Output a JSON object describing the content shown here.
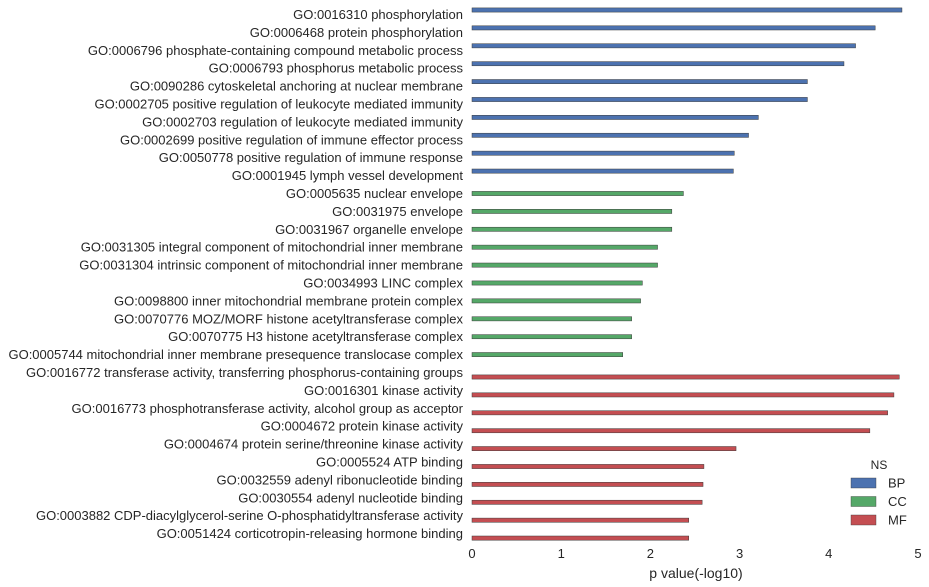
{
  "chart_data": {
    "type": "bar",
    "orientation": "horizontal",
    "xlabel": "p value(-log10)",
    "xlim": [
      0,
      5
    ],
    "xticks": [
      "0",
      "1",
      "2",
      "3",
      "4",
      "5"
    ],
    "grid": false,
    "legend": {
      "title": "NS",
      "placement": "bottom-right",
      "entries": [
        {
          "name": "BP",
          "color": "#4c72b0"
        },
        {
          "name": "CC",
          "color": "#55a868"
        },
        {
          "name": "MF",
          "color": "#c44e52"
        }
      ]
    },
    "series": [
      {
        "name": "BP",
        "color": "#4c72b0",
        "categories": [
          "GO:0016310 phosphorylation",
          "GO:0006468 protein phosphorylation",
          "GO:0006796 phosphate-containing compound metabolic process",
          "GO:0006793 phosphorus metabolic process",
          "GO:0090286 cytoskeletal anchoring at nuclear membrane",
          "GO:0002705 positive regulation of leukocyte mediated immunity",
          "GO:0002703 regulation of leukocyte mediated immunity",
          "GO:0002699 positive regulation of immune effector process",
          "GO:0050778 positive regulation of immune response",
          "GO:0001945 lymph vessel development"
        ],
        "values": [
          4.82,
          4.52,
          4.3,
          4.17,
          3.76,
          3.76,
          3.21,
          3.1,
          2.94,
          2.93
        ]
      },
      {
        "name": "CC",
        "color": "#55a868",
        "categories": [
          "GO:0005635 nuclear envelope",
          "GO:0031975 envelope",
          "GO:0031967 organelle envelope",
          "GO:0031305 integral component of mitochondrial inner membrane",
          "GO:0031304 intrinsic component of mitochondrial inner membrane",
          "GO:0034993 LINC complex",
          "GO:0098800 inner mitochondrial membrane protein complex",
          "GO:0070776 MOZ/MORF histone acetyltransferase complex",
          "GO:0070775 H3 histone acetyltransferase complex",
          "GO:0005744 mitochondrial inner membrane presequence translocase complex"
        ],
        "values": [
          2.37,
          2.24,
          2.24,
          2.08,
          2.08,
          1.91,
          1.89,
          1.79,
          1.79,
          1.69
        ]
      },
      {
        "name": "MF",
        "color": "#c44e52",
        "categories": [
          "GO:0016772 transferase activity, transferring phosphorus-containing groups",
          "GO:0016301 kinase activity",
          "GO:0016773 phosphotransferase activity, alcohol group as acceptor",
          "GO:0004672 protein kinase activity",
          "GO:0004674 protein serine/threonine kinase activity",
          "GO:0005524 ATP binding",
          "GO:0032559 adenyl ribonucleotide binding",
          "GO:0030554 adenyl nucleotide binding",
          "GO:0003882 CDP-diacylglycerol-serine O-phosphatidyltransferase activity",
          "GO:0051424 corticotropin-releasing hormone binding"
        ],
        "values": [
          4.79,
          4.73,
          4.66,
          4.46,
          2.96,
          2.6,
          2.59,
          2.58,
          2.43,
          2.43
        ]
      }
    ]
  }
}
